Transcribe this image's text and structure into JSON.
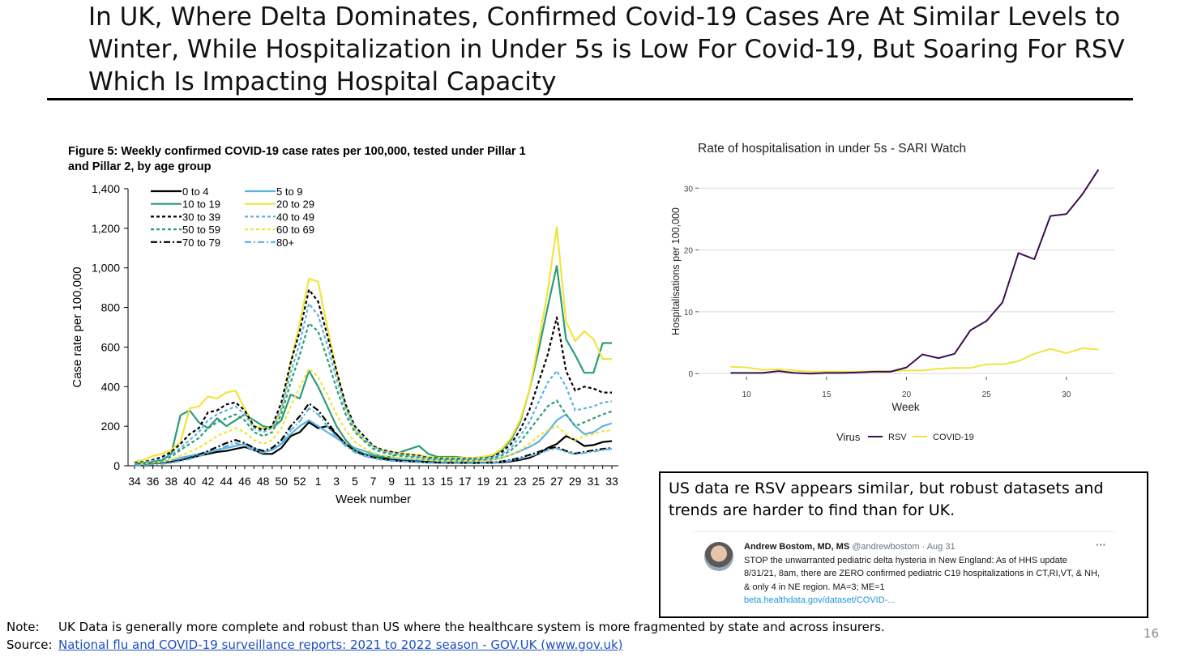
{
  "slide": {
    "title": "In UK, Where Delta Dominates, Confirmed Covid-19 Cases Are At Similar Levels to Winter, While Hospitalization in Under 5s is Low For Covid-19, But Soaring For RSV Which Is Impacting Hospital Capacity",
    "callout_text": "US data re RSV appears similar, but robust datasets and trends are harder to find than for UK.",
    "note_label": "Note:",
    "note_text": "UK Data is generally more complete and robust than US where the healthcare system is more fragmented by state and across insurers.",
    "source_label": "Source:",
    "source_link": "National flu and COVID-19 surveillance reports: 2021 to 2022 season - GOV.UK (www.gov.uk)",
    "page_number": "16"
  },
  "tweet": {
    "name": "Andrew Bostom, MD, MS",
    "handle": "@andrewbostom · Aug 31",
    "more": "···",
    "text": "STOP the unwarranted pediatric delta hysteria in New England: As of HHS update 8/31/21, 8am, there are ZERO confirmed pediatric C19 hospitalizations in CT,RI,VT, & NH, & only 4 in NE region. MA=3; ME=1",
    "link": "beta.healthdata.gov/dataset/COVID-..."
  },
  "chart_data": [
    {
      "type": "line",
      "title": "Figure 5: Weekly confirmed COVID-19 case rates per 100,000, tested under Pillar 1 and Pillar 2, by age group",
      "title_lines": [
        "Figure 5: Weekly confirmed COVID-19 case rates per 100,000, tested under Pillar 1",
        "and Pillar 2, by age group"
      ],
      "xlabel": "Week number",
      "ylabel": "Case rate per 100,000",
      "ylim": [
        0,
        1400
      ],
      "yticks": [
        0,
        200,
        400,
        600,
        800,
        1000,
        1200,
        1400
      ],
      "ytick_labels": [
        "0",
        "200",
        "400",
        "600",
        "800",
        "1,000",
        "1,200",
        "1,400"
      ],
      "x": [
        34,
        35,
        36,
        37,
        38,
        39,
        40,
        41,
        42,
        43,
        44,
        45,
        46,
        47,
        48,
        49,
        50,
        51,
        52,
        53,
        1,
        2,
        3,
        4,
        5,
        6,
        7,
        8,
        9,
        10,
        11,
        12,
        13,
        14,
        15,
        16,
        17,
        18,
        19,
        20,
        21,
        22,
        23,
        24,
        25,
        26,
        27,
        28,
        29,
        30,
        31,
        32,
        33
      ],
      "xtick_labels": [
        "34",
        "36",
        "38",
        "40",
        "42",
        "44",
        "46",
        "48",
        "50",
        "52",
        "1",
        "3",
        "5",
        "7",
        "9",
        "11",
        "13",
        "15",
        "17",
        "19",
        "21",
        "23",
        "25",
        "27",
        "29",
        "31",
        "33"
      ],
      "grid": false,
      "legend": "top-left",
      "series": [
        {
          "name": "0 to 4",
          "color": "#000000",
          "dash": "solid",
          "values": [
            5,
            8,
            12,
            15,
            20,
            28,
            40,
            50,
            60,
            70,
            75,
            85,
            95,
            80,
            60,
            60,
            90,
            150,
            170,
            220,
            190,
            200,
            160,
            110,
            80,
            60,
            50,
            40,
            30,
            28,
            25,
            25,
            20,
            18,
            16,
            15,
            15,
            14,
            15,
            15,
            18,
            22,
            30,
            40,
            60,
            90,
            110,
            150,
            130,
            100,
            105,
            120,
            125
          ]
        },
        {
          "name": "5 to 9",
          "color": "#5bb4e0",
          "dash": "solid",
          "values": [
            8,
            10,
            14,
            20,
            28,
            40,
            50,
            60,
            70,
            80,
            90,
            100,
            110,
            90,
            70,
            80,
            110,
            160,
            200,
            230,
            200,
            170,
            140,
            110,
            90,
            75,
            60,
            50,
            40,
            35,
            32,
            30,
            28,
            25,
            22,
            22,
            22,
            25,
            28,
            30,
            40,
            55,
            75,
            95,
            120,
            170,
            230,
            260,
            200,
            160,
            170,
            200,
            215
          ]
        },
        {
          "name": "10 to 19",
          "color": "#2a9d78",
          "dash": "solid",
          "values": [
            10,
            15,
            20,
            28,
            60,
            255,
            280,
            220,
            190,
            240,
            200,
            230,
            260,
            230,
            200,
            190,
            230,
            360,
            340,
            480,
            400,
            300,
            200,
            130,
            80,
            60,
            50,
            45,
            45,
            70,
            85,
            100,
            60,
            45,
            45,
            45,
            40,
            40,
            45,
            50,
            80,
            130,
            220,
            380,
            580,
            800,
            1010,
            640,
            560,
            470,
            470,
            620,
            620
          ]
        },
        {
          "name": "20 to 29",
          "color": "#f2e43c",
          "dash": "solid",
          "values": [
            20,
            30,
            50,
            60,
            80,
            120,
            290,
            300,
            350,
            340,
            370,
            380,
            290,
            200,
            190,
            190,
            280,
            520,
            720,
            945,
            930,
            700,
            480,
            300,
            180,
            130,
            100,
            80,
            70,
            65,
            60,
            55,
            45,
            40,
            40,
            40,
            40,
            40,
            45,
            55,
            85,
            140,
            230,
            380,
            620,
            880,
            1205,
            730,
            630,
            680,
            640,
            540,
            540
          ]
        },
        {
          "name": "30 to 39",
          "color": "#000000",
          "dash": "4,3",
          "values": [
            15,
            20,
            30,
            45,
            70,
            110,
            160,
            190,
            270,
            280,
            310,
            320,
            280,
            200,
            180,
            200,
            320,
            520,
            680,
            890,
            830,
            660,
            480,
            310,
            200,
            150,
            100,
            80,
            70,
            60,
            55,
            50,
            40,
            38,
            35,
            35,
            35,
            35,
            38,
            45,
            70,
            110,
            180,
            280,
            420,
            560,
            750,
            480,
            380,
            400,
            390,
            370,
            370
          ]
        },
        {
          "name": "40 to 49",
          "color": "#5bb4e0",
          "dash": "4,3",
          "values": [
            12,
            18,
            25,
            35,
            55,
            90,
            130,
            170,
            230,
            260,
            280,
            300,
            260,
            190,
            170,
            190,
            290,
            470,
            620,
            820,
            760,
            610,
            440,
            290,
            190,
            140,
            95,
            75,
            65,
            56,
            50,
            46,
            38,
            35,
            32,
            32,
            32,
            33,
            36,
            42,
            60,
            90,
            150,
            220,
            320,
            420,
            480,
            400,
            280,
            290,
            300,
            320,
            325
          ]
        },
        {
          "name": "50 to 59",
          "color": "#2a9d78",
          "dash": "4,3",
          "values": [
            10,
            15,
            20,
            30,
            45,
            80,
            110,
            140,
            190,
            220,
            240,
            260,
            230,
            170,
            150,
            170,
            260,
            420,
            560,
            720,
            680,
            540,
            390,
            260,
            170,
            125,
            85,
            68,
            58,
            50,
            45,
            42,
            35,
            32,
            30,
            30,
            30,
            30,
            32,
            38,
            52,
            78,
            120,
            180,
            240,
            300,
            330,
            260,
            200,
            220,
            240,
            260,
            275
          ]
        },
        {
          "name": "60 to 69",
          "color": "#f2e43c",
          "dash": "4,3",
          "values": [
            6,
            10,
            14,
            20,
            30,
            50,
            70,
            90,
            120,
            150,
            170,
            190,
            170,
            130,
            110,
            130,
            190,
            300,
            400,
            490,
            450,
            360,
            260,
            180,
            120,
            90,
            65,
            52,
            45,
            40,
            36,
            33,
            28,
            26,
            24,
            24,
            24,
            24,
            26,
            30,
            38,
            55,
            80,
            110,
            150,
            180,
            200,
            160,
            130,
            150,
            160,
            175,
            180
          ]
        },
        {
          "name": "70 to 79",
          "color": "#000000",
          "dash": "8,3,2,3",
          "values": [
            4,
            6,
            9,
            12,
            18,
            28,
            40,
            55,
            75,
            95,
            115,
            130,
            115,
            90,
            75,
            90,
            130,
            200,
            250,
            315,
            280,
            220,
            160,
            110,
            75,
            55,
            42,
            34,
            28,
            24,
            22,
            20,
            17,
            16,
            15,
            15,
            15,
            15,
            16,
            18,
            22,
            30,
            40,
            55,
            70,
            85,
            95,
            75,
            62,
            70,
            78,
            85,
            90
          ]
        },
        {
          "name": "80+",
          "color": "#5bb4e0",
          "dash": "8,3,2,3",
          "values": [
            3,
            5,
            7,
            10,
            15,
            24,
            34,
            48,
            65,
            82,
            100,
            115,
            100,
            80,
            66,
            80,
            115,
            180,
            225,
            290,
            260,
            200,
            145,
            100,
            68,
            50,
            38,
            30,
            25,
            22,
            20,
            18,
            15,
            14,
            13,
            13,
            13,
            13,
            14,
            16,
            20,
            26,
            36,
            48,
            62,
            78,
            88,
            70,
            58,
            65,
            72,
            80,
            85
          ]
        }
      ]
    },
    {
      "type": "line",
      "title": "Rate of hospitalisation in under 5s - SARI Watch",
      "xlabel": "Week",
      "ylabel": "Hospitalisations per 100,000",
      "xlim": [
        7,
        33
      ],
      "ylim": [
        -0.5,
        32
      ],
      "xticks": [
        10,
        15,
        20,
        25,
        30
      ],
      "yticks": [
        0,
        10,
        20,
        30
      ],
      "grid": true,
      "legend": "bottom",
      "legend_title": "Virus",
      "series": [
        {
          "name": "RSV",
          "color": "#3b0f4e",
          "x": [
            9,
            10,
            11,
            12,
            13,
            14,
            15,
            16,
            17,
            18,
            19,
            20,
            21,
            22,
            23,
            24,
            25,
            26,
            27,
            28,
            29,
            30,
            31,
            32
          ],
          "values": [
            0.1,
            0.1,
            0.1,
            0.4,
            0.1,
            0.0,
            0.1,
            0.1,
            0.2,
            0.3,
            0.3,
            1.0,
            3.1,
            2.5,
            3.2,
            7.0,
            8.5,
            11.5,
            19.5,
            18.5,
            25.5,
            25.8,
            29.0,
            33.0
          ]
        },
        {
          "name": "COVID-19",
          "color": "#f2e43c",
          "x": [
            9,
            10,
            11,
            12,
            13,
            14,
            15,
            16,
            17,
            18,
            19,
            20,
            21,
            22,
            23,
            24,
            25,
            26,
            27,
            28,
            29,
            30,
            31,
            32
          ],
          "values": [
            1.1,
            1.0,
            0.6,
            0.7,
            0.5,
            0.3,
            0.3,
            0.3,
            0.3,
            0.4,
            0.4,
            0.5,
            0.5,
            0.8,
            0.9,
            0.9,
            1.5,
            1.5,
            2.0,
            3.2,
            4.0,
            3.3,
            4.1,
            3.9
          ]
        }
      ]
    }
  ]
}
